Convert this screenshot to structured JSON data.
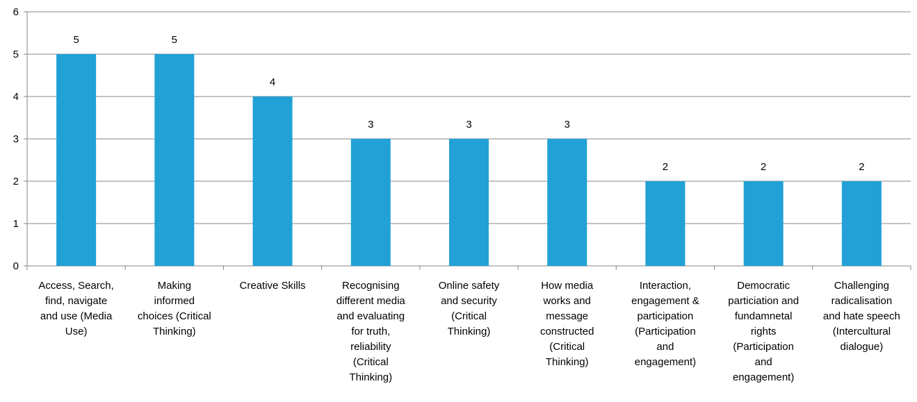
{
  "chart_data": {
    "type": "bar",
    "categories": [
      "Access, Search, find, navigate and use (Media Use)",
      "Making informed choices (Critical Thinking)",
      "Creative Skills",
      "Recognising different media and evaluating for truth, reliability (Critical Thinking)",
      "Online safety and security (Critical Thinking)",
      "How media works and message constructed (Critical Thinking)",
      "Interaction, engagement & participation (Participation and engagement)",
      "Democratic particiation and fundamnetal rights (Participation and engagement)",
      "Challenging radicalisation and hate speech (Intercultural dialogue)"
    ],
    "category_lines": [
      [
        "Access, Search,",
        "find, navigate",
        "and use (Media",
        "Use)"
      ],
      [
        "Making",
        "informed",
        "choices (Critical",
        "Thinking)"
      ],
      [
        "Creative Skills"
      ],
      [
        "Recognising",
        "different media",
        "and evaluating",
        "for truth,",
        "reliability",
        "(Critical",
        "Thinking)"
      ],
      [
        "Online safety",
        "and security",
        "(Critical",
        "Thinking)"
      ],
      [
        "How media",
        "works and",
        "message",
        "constructed",
        "(Critical",
        "Thinking)"
      ],
      [
        "Interaction,",
        "engagement &",
        "participation",
        "(Participation",
        "and",
        "engagement)"
      ],
      [
        "Democratic",
        "particiation and",
        "fundamnetal",
        "rights",
        "(Participation",
        "and",
        "engagement)"
      ],
      [
        "Challenging",
        "radicalisation",
        "and hate speech",
        "(Intercultural",
        "dialogue)"
      ]
    ],
    "values": [
      5,
      5,
      4,
      3,
      3,
      3,
      2,
      2,
      2
    ],
    "data_labels": [
      "5",
      "5",
      "4",
      "3",
      "3",
      "3",
      "2",
      "2",
      "2"
    ],
    "y_ticks": [
      "0",
      "1",
      "2",
      "3",
      "4",
      "5",
      "6"
    ],
    "ylim": [
      0,
      6
    ],
    "grid": true,
    "legend": "none",
    "title": "",
    "xlabel": "",
    "ylabel": "",
    "colors": {
      "bar": "#21a1d6",
      "grid": "#878787",
      "text": "#000000"
    }
  }
}
